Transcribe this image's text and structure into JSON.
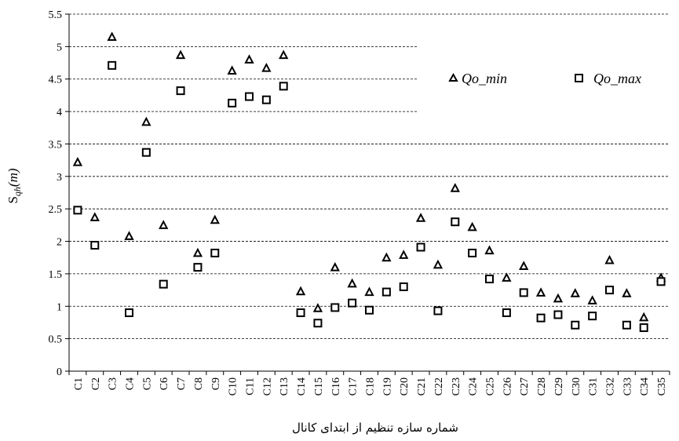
{
  "chart_data": {
    "type": "scatter",
    "title": "",
    "xlabel": "شماره سازه تنظیم از ابتدای کانال",
    "ylabel": {
      "prefix": "S",
      "sub": "qh",
      "suffix": "(m)"
    },
    "ylim": [
      0,
      5.5
    ],
    "yticks": [
      "0",
      "0.5",
      "1",
      "1.5",
      "2",
      "2.5",
      "3",
      "3.5",
      "4",
      "4.5",
      "5",
      "5.5"
    ],
    "grid": "horizontal dashed",
    "legend_position": "top-right",
    "categories": [
      "C1",
      "C2",
      "C3",
      "C4",
      "C5",
      "C6",
      "C7",
      "C8",
      "C9",
      "C10",
      "C11",
      "C12",
      "C13",
      "C14",
      "C15",
      "C16",
      "C17",
      "C18",
      "C19",
      "C20",
      "C21",
      "C22",
      "C23",
      "C24",
      "C25",
      "C26",
      "C27",
      "C28",
      "C29",
      "C30",
      "C31",
      "C32",
      "C33",
      "C34",
      "C35"
    ],
    "series": [
      {
        "name": "Qo_min",
        "marker": "triangle",
        "values": [
          3.22,
          2.37,
          5.15,
          2.08,
          3.84,
          2.25,
          4.87,
          1.82,
          2.33,
          4.63,
          4.8,
          4.67,
          4.87,
          1.23,
          0.97,
          1.6,
          1.35,
          1.22,
          1.75,
          1.79,
          2.36,
          1.64,
          2.82,
          2.22,
          1.86,
          1.44,
          1.62,
          1.21,
          1.12,
          1.2,
          1.09,
          1.71,
          1.2,
          0.83,
          1.44
        ]
      },
      {
        "name": "Qo_max",
        "marker": "square",
        "values": [
          2.48,
          1.94,
          4.71,
          0.9,
          3.37,
          1.34,
          4.32,
          1.6,
          1.82,
          4.13,
          4.23,
          4.18,
          4.39,
          0.9,
          0.74,
          0.98,
          1.05,
          0.94,
          1.22,
          1.3,
          1.91,
          0.93,
          2.3,
          1.82,
          1.42,
          0.9,
          1.21,
          0.82,
          0.87,
          0.71,
          0.85,
          1.25,
          0.71,
          0.67,
          1.38
        ]
      }
    ]
  },
  "legend": {
    "items": [
      {
        "label": "Qo_min",
        "marker": "triangle"
      },
      {
        "label": "Qo_max",
        "marker": "square"
      }
    ]
  }
}
